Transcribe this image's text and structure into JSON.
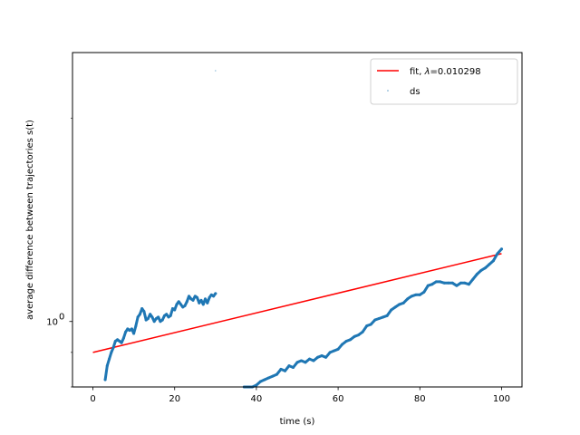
{
  "chart_data": {
    "type": "line",
    "title": "",
    "xlabel": "time (s)",
    "ylabel": "average difference between trajectories s(t)",
    "xlim": [
      -5,
      105
    ],
    "ylim": [
      0.8,
      2.5
    ],
    "yscale": "log",
    "x_ticks": [
      0,
      20,
      40,
      60,
      80,
      100
    ],
    "x_tick_labels": [
      "0",
      "20",
      "40",
      "60",
      "80",
      "100"
    ],
    "y_ticks": [
      1.0
    ],
    "y_tick_labels": [
      "10"
    ],
    "y_tick_label_exponent": "0",
    "legend": {
      "location": "upper right",
      "entries": [
        {
          "label_prefix": "fit, ",
          "label_symbol": "λ",
          "label_value": "=0.010298",
          "color": "#ff0000",
          "marker": "line"
        },
        {
          "label": "ds",
          "color": "#1f77b4",
          "marker": "point"
        }
      ]
    },
    "series": [
      {
        "name": "fit, λ=0.010298",
        "style": "line",
        "color": "#ff0000",
        "x": [
          0,
          100
        ],
        "y": [
          0.9,
          1.26
        ]
      },
      {
        "name": "ds",
        "style": "scatter",
        "color": "#1f77b4",
        "segments": [
          {
            "x": [
              3,
              3.5,
              4,
              4.5,
              5,
              5.5,
              6,
              6.5,
              7,
              7.5,
              8,
              8.5,
              9,
              9.5,
              10,
              10.5,
              11,
              11.5,
              12,
              12.5,
              13,
              13.5,
              14,
              14.5,
              15,
              15.5,
              16,
              16.5,
              17,
              17.5,
              18,
              18.5,
              19,
              19.5,
              20,
              20.5,
              21,
              21.5,
              22,
              22.5,
              23,
              23.5,
              24,
              24.5,
              25,
              25.5,
              26,
              26.5,
              27,
              27.5,
              28,
              28.5,
              29,
              29.5,
              30
            ],
            "y": [
              0.82,
              0.86,
              0.88,
              0.9,
              0.915,
              0.935,
              0.94,
              0.935,
              0.93,
              0.945,
              0.965,
              0.975,
              0.97,
              0.975,
              0.96,
              0.985,
              1.015,
              1.025,
              1.045,
              1.035,
              1.005,
              1.01,
              1.025,
              1.015,
              1.0,
              1.01,
              1.015,
              1.0,
              1.005,
              1.02,
              1.025,
              1.015,
              1.02,
              1.045,
              1.04,
              1.06,
              1.07,
              1.06,
              1.05,
              1.055,
              1.07,
              1.09,
              1.08,
              1.075,
              1.09,
              1.085,
              1.065,
              1.075,
              1.06,
              1.08,
              1.065,
              1.085,
              1.095,
              1.09,
              1.1
            ]
          },
          {
            "x": [
              37,
              38,
              39,
              40,
              41,
              42,
              43,
              44,
              45,
              46,
              47,
              48,
              49,
              50,
              51,
              52,
              53,
              54,
              55,
              56,
              57,
              58,
              59,
              60,
              61,
              62,
              63,
              64,
              65,
              66,
              67,
              68,
              69,
              70,
              71,
              72,
              73,
              74,
              75,
              76,
              77,
              78,
              79,
              80,
              81,
              82,
              83,
              84,
              85,
              86,
              87,
              88,
              89,
              90,
              91,
              92,
              93,
              94,
              95,
              96,
              97,
              98,
              99,
              100
            ],
            "y": [
              0.8,
              0.8,
              0.8,
              0.805,
              0.815,
              0.82,
              0.825,
              0.83,
              0.835,
              0.85,
              0.845,
              0.86,
              0.855,
              0.87,
              0.875,
              0.87,
              0.88,
              0.875,
              0.885,
              0.89,
              0.885,
              0.9,
              0.905,
              0.91,
              0.925,
              0.935,
              0.94,
              0.95,
              0.955,
              0.965,
              0.985,
              0.99,
              1.005,
              1.01,
              1.015,
              1.02,
              1.04,
              1.05,
              1.06,
              1.065,
              1.08,
              1.09,
              1.095,
              1.095,
              1.105,
              1.13,
              1.135,
              1.145,
              1.145,
              1.14,
              1.14,
              1.14,
              1.13,
              1.14,
              1.14,
              1.135,
              1.155,
              1.175,
              1.19,
              1.2,
              1.215,
              1.23,
              1.26,
              1.28
            ]
          },
          {
            "x": [
              30
            ],
            "y": [
              2.35
            ]
          }
        ]
      }
    ]
  }
}
